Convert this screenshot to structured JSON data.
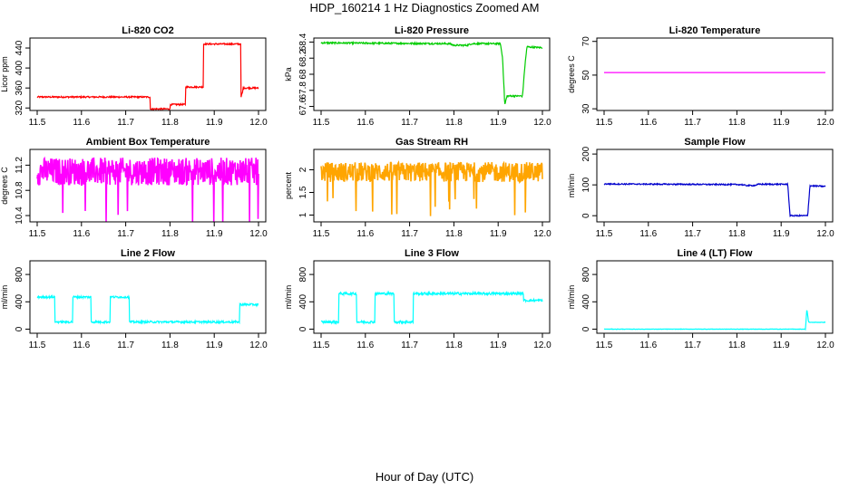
{
  "figure": {
    "title": "HDP_160214  1 Hz Diagnostics Zoomed AM",
    "xlabel": "Hour of Day (UTC)"
  },
  "chart_data": [
    {
      "type": "line",
      "title": "Li-820 CO2",
      "ylabel": "Licor ppm",
      "color": "#ff0000",
      "xlim": [
        11.5,
        12.0
      ],
      "ylim": [
        315,
        460
      ],
      "x_ticks": [
        11.5,
        11.6,
        11.7,
        11.8,
        11.9,
        12.0
      ],
      "y_ticks": [
        320,
        360,
        400,
        440
      ],
      "noise": 1.5,
      "x": [
        11.5,
        11.755,
        11.755,
        11.8,
        11.8,
        11.835,
        11.835,
        11.875,
        11.875,
        11.96,
        11.96,
        11.965,
        11.965,
        12.0
      ],
      "y": [
        342,
        342,
        318,
        318,
        327,
        327,
        362,
        362,
        448,
        448,
        340,
        355,
        360,
        360
      ]
    },
    {
      "type": "line",
      "title": "Li-820 Pressure",
      "ylabel": "kPa",
      "color": "#00cc00",
      "xlim": [
        11.5,
        12.0
      ],
      "ylim": [
        67.55,
        68.45
      ],
      "x_ticks": [
        11.5,
        11.6,
        11.7,
        11.8,
        11.9,
        12.0
      ],
      "y_ticks": [
        67.6,
        67.8,
        68.0,
        68.2,
        68.4
      ],
      "noise": 0.01,
      "x": [
        11.5,
        11.79,
        11.8,
        11.83,
        11.84,
        11.905,
        11.91,
        11.915,
        11.92,
        11.955,
        11.96,
        11.965,
        12.0
      ],
      "y": [
        68.39,
        68.38,
        68.36,
        68.36,
        68.38,
        68.38,
        68.2,
        67.62,
        67.73,
        67.73,
        68.08,
        68.34,
        68.33
      ]
    },
    {
      "type": "line",
      "title": "Li-820 Temperature",
      "ylabel": "degrees C",
      "color": "#ff00ff",
      "xlim": [
        11.5,
        12.0
      ],
      "ylim": [
        29,
        72
      ],
      "x_ticks": [
        11.5,
        11.6,
        11.7,
        11.8,
        11.9,
        12.0
      ],
      "y_ticks": [
        30,
        50,
        70
      ],
      "noise": 0,
      "x": [
        11.5,
        12.0
      ],
      "y": [
        51.5,
        51.5
      ]
    },
    {
      "type": "line",
      "title": "Ambient Box Temperature",
      "ylabel": "degrees C",
      "color": "#ff00ff",
      "xlim": [
        11.5,
        12.0
      ],
      "ylim": [
        10.3,
        11.45
      ],
      "x_ticks": [
        11.5,
        11.6,
        11.7,
        11.8,
        11.9,
        12.0
      ],
      "y_ticks": [
        10.4,
        10.8,
        11.2
      ],
      "noise": 0.22,
      "x": [
        11.5,
        12.0
      ],
      "y": [
        11.1,
        11.1
      ]
    },
    {
      "type": "line",
      "title": "Gas Stream RH",
      "ylabel": "percent",
      "color": "#ffa500",
      "xlim": [
        11.5,
        12.0
      ],
      "ylim": [
        0.85,
        2.45
      ],
      "x_ticks": [
        11.5,
        11.6,
        11.7,
        11.8,
        11.9,
        12.0
      ],
      "y_ticks": [
        1.0,
        1.5,
        2.0
      ],
      "noise": 0.22,
      "x": [
        11.5,
        12.0
      ],
      "y": [
        1.95,
        1.95
      ]
    },
    {
      "type": "line",
      "title": "Sample Flow",
      "ylabel": "ml/min",
      "color": "#0000cc",
      "xlim": [
        11.5,
        12.0
      ],
      "ylim": [
        -20,
        215
      ],
      "x_ticks": [
        11.5,
        11.6,
        11.7,
        11.8,
        11.9,
        12.0
      ],
      "y_ticks": [
        0,
        100,
        200
      ],
      "noise": 2,
      "x": [
        11.5,
        11.81,
        11.82,
        11.84,
        11.85,
        11.915,
        11.92,
        11.955,
        11.96,
        11.965,
        12.0
      ],
      "y": [
        103,
        101,
        98,
        98,
        102,
        102,
        0,
        0,
        0,
        97,
        95
      ]
    },
    {
      "type": "line",
      "title": "Line 2 Flow",
      "ylabel": "ml/min",
      "color": "#00ffff",
      "xlim": [
        11.5,
        12.0
      ],
      "ylim": [
        -60,
        1000
      ],
      "x_ticks": [
        11.5,
        11.6,
        11.7,
        11.8,
        11.9,
        12.0
      ],
      "y_ticks": [
        0,
        400,
        800
      ],
      "noise": 15,
      "x": [
        11.5,
        11.54,
        11.54,
        11.58,
        11.58,
        11.622,
        11.622,
        11.665,
        11.665,
        11.708,
        11.708,
        11.957,
        11.957,
        12.0
      ],
      "y": [
        470,
        470,
        105,
        105,
        470,
        470,
        105,
        105,
        470,
        470,
        105,
        105,
        360,
        360
      ]
    },
    {
      "type": "line",
      "title": "Line 3 Flow",
      "ylabel": "ml/min",
      "color": "#00ffff",
      "xlim": [
        11.5,
        12.0
      ],
      "ylim": [
        -60,
        1000
      ],
      "x_ticks": [
        11.5,
        11.6,
        11.7,
        11.8,
        11.9,
        12.0
      ],
      "y_ticks": [
        0,
        400,
        800
      ],
      "noise": 18,
      "x": [
        11.5,
        11.54,
        11.54,
        11.58,
        11.58,
        11.622,
        11.622,
        11.665,
        11.665,
        11.708,
        11.708,
        11.957,
        11.957,
        12.0
      ],
      "y": [
        105,
        105,
        520,
        520,
        105,
        105,
        520,
        520,
        105,
        105,
        520,
        520,
        420,
        420
      ]
    },
    {
      "type": "line",
      "title": "Line 4 (LT) Flow",
      "ylabel": "ml/min",
      "color": "#00ffff",
      "xlim": [
        11.5,
        12.0
      ],
      "ylim": [
        -60,
        1000
      ],
      "x_ticks": [
        11.5,
        11.6,
        11.7,
        11.8,
        11.9,
        12.0
      ],
      "y_ticks": [
        0,
        400,
        800
      ],
      "noise": 3,
      "x": [
        11.5,
        11.955,
        11.958,
        11.962,
        11.966,
        12.0
      ],
      "y": [
        0,
        0,
        300,
        100,
        100,
        100
      ]
    }
  ]
}
